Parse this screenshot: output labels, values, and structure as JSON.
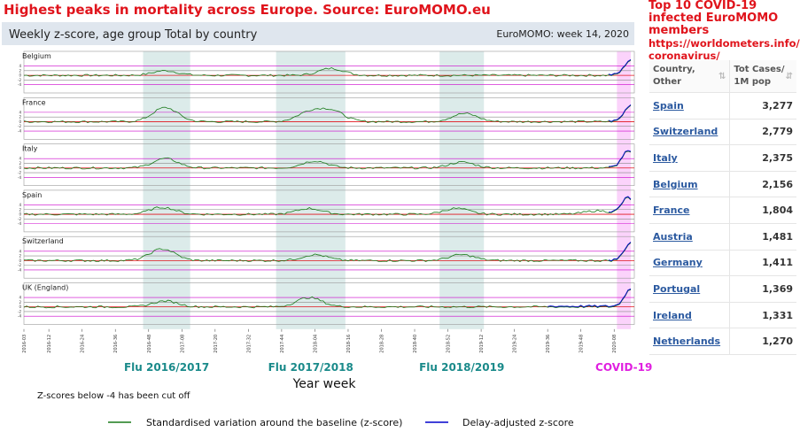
{
  "title": "Highest peaks in mortality across Europe. Source: EuroMOMO.eu",
  "colors": {
    "title_red": "#e0141c",
    "zscore_line": "#1a7a1a",
    "delay_line": "#0000cc",
    "baseline": "#e0141c",
    "threshold": "#cc00cc",
    "flu_band": "#dcebea",
    "covid_band": "#fbd3fb",
    "flu_label": "#1a8a8a",
    "covid_label": "#e020e0"
  },
  "chart_data": {
    "type": "line",
    "subtitle": "Weekly z-score, age group Total by country",
    "week_label": "EuroMOMO: week 14, 2020",
    "xlabel": "Year week",
    "note": "Z-scores below -4 has been cut off",
    "x_ticks": [
      "2016-03",
      "2016-12",
      "2016-24",
      "2016-36",
      "2016-48",
      "2017-08",
      "2017-20",
      "2017-32",
      "2017-44",
      "2018-04",
      "2018-16",
      "2018-28",
      "2018-40",
      "2018-52",
      "2019-12",
      "2019-24",
      "2019-36",
      "2019-48",
      "2020-08"
    ],
    "y_ticks": [
      "4",
      "2",
      "0",
      "-2",
      "-4"
    ],
    "periods": [
      {
        "label": "Flu 2016/2017",
        "kind": "flu",
        "start": "2016-46",
        "end": "2017-11"
      },
      {
        "label": "Flu 2017/2018",
        "kind": "flu",
        "start": "2017-42",
        "end": "2018-15"
      },
      {
        "label": "Flu 2018/2019",
        "kind": "flu",
        "start": "2018-49",
        "end": "2019-13"
      },
      {
        "label": "COVID-19",
        "kind": "covid",
        "start": "2020-09",
        "end": "2020-14"
      }
    ],
    "countries": [
      {
        "name": "Belgium",
        "peaks": [
          {
            "week": "2017-02",
            "z": 2.0
          },
          {
            "week": "2018-10",
            "z": 3.0
          },
          {
            "week": "2020-14",
            "z": 6.5
          }
        ]
      },
      {
        "name": "France",
        "peaks": [
          {
            "week": "2017-02",
            "z": 6.0
          },
          {
            "week": "2018-02",
            "z": 4.0
          },
          {
            "week": "2018-10",
            "z": 4.5
          },
          {
            "week": "2019-06",
            "z": 3.5
          },
          {
            "week": "2020-14",
            "z": 7.0
          }
        ]
      },
      {
        "name": "Italy",
        "peaks": [
          {
            "week": "2017-02",
            "z": 4.0
          },
          {
            "week": "2018-04",
            "z": 3.0
          },
          {
            "week": "2019-05",
            "z": 2.5
          },
          {
            "week": "2020-13",
            "z": 7.0
          }
        ]
      },
      {
        "name": "Spain",
        "peaks": [
          {
            "week": "2017-01",
            "z": 3.0
          },
          {
            "week": "2018-02",
            "z": 2.5
          },
          {
            "week": "2019-03",
            "z": 2.5
          },
          {
            "week": "2020-02",
            "z": 1.5
          },
          {
            "week": "2020-13",
            "z": 7.0
          }
        ]
      },
      {
        "name": "Switzerland",
        "peaks": [
          {
            "week": "2017-01",
            "z": 5.0
          },
          {
            "week": "2018-04",
            "z": 2.5
          },
          {
            "week": "2019-05",
            "z": 2.5
          },
          {
            "week": "2020-14",
            "z": 7.5
          }
        ]
      },
      {
        "name": "UK (England)",
        "peaks": [
          {
            "week": "2017-02",
            "z": 2.5
          },
          {
            "week": "2018-02",
            "z": 4.0
          },
          {
            "week": "2020-14",
            "z": 7.5
          }
        ]
      }
    ],
    "legend": [
      {
        "label": "Standardised variation around the baseline (z-score)",
        "color": "#1a7a1a"
      },
      {
        "label": "Delay-adjusted z-score",
        "color": "#0000cc"
      }
    ]
  },
  "side": {
    "title": "Top 10 COVID-19 infected EuroMOMO members",
    "url_line1": "https://worldometers.info/",
    "url_line2": "coronavirus/",
    "col_country": "Country, Other",
    "col_cases": "Tot Cases/ 1M pop",
    "rows": [
      {
        "country": "Spain",
        "cases": "3,277"
      },
      {
        "country": "Switzerland",
        "cases": "2,779"
      },
      {
        "country": "Italy",
        "cases": "2,375"
      },
      {
        "country": "Belgium",
        "cases": "2,156"
      },
      {
        "country": "France",
        "cases": "1,804"
      },
      {
        "country": "Austria",
        "cases": "1,481"
      },
      {
        "country": "Germany",
        "cases": "1,411"
      },
      {
        "country": "Portugal",
        "cases": "1,369"
      },
      {
        "country": "Ireland",
        "cases": "1,331"
      },
      {
        "country": "Netherlands",
        "cases": "1,270"
      }
    ]
  }
}
